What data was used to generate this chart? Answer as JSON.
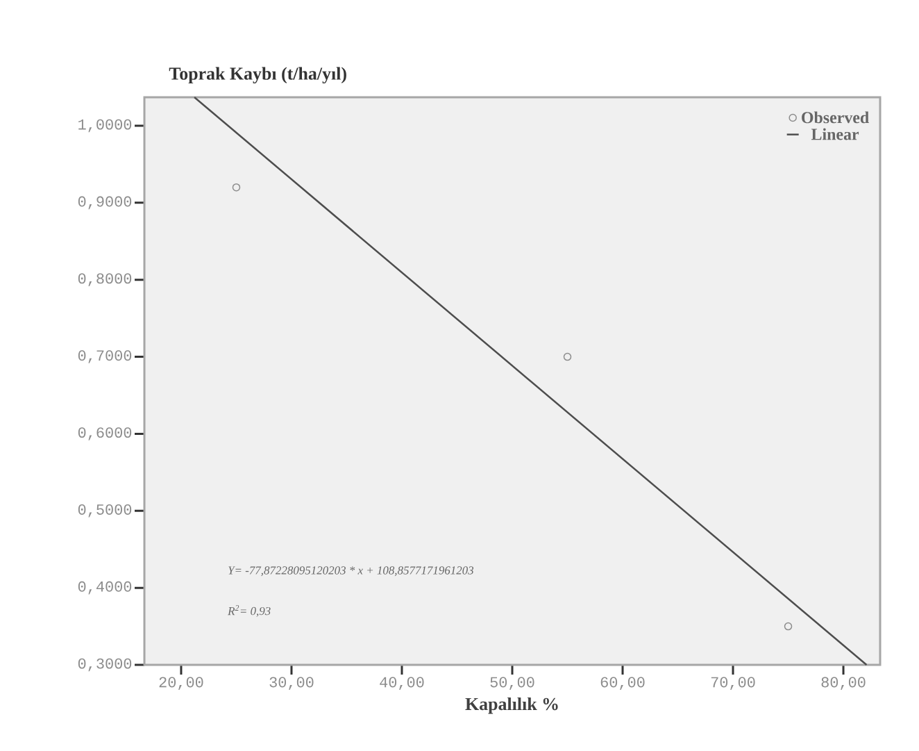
{
  "chart_data": {
    "type": "scatter",
    "ylabel": "Toprak Kaybı (t/ha/yıl)",
    "xlabel": "Kapalılık %",
    "series": [
      {
        "name": "Observed",
        "color": "#8c8c8c",
        "marker": "circle",
        "x": [
          25,
          55,
          75
        ],
        "values": [
          0.92,
          0.7,
          0.35
        ]
      },
      {
        "name": "Linear",
        "type": "line",
        "color": "#4d4d4d",
        "marker": "none",
        "line_style": "solid",
        "x": [
          21.2,
          82.1
        ],
        "values": [
          1.037,
          0.3
        ]
      }
    ],
    "xlim": [
      16.67,
      83.33
    ],
    "ylim": [
      0.3,
      1.037
    ],
    "xticks": [
      {
        "value": 20,
        "label": "20,00"
      },
      {
        "value": 30,
        "label": "30,00"
      },
      {
        "value": 40,
        "label": "40,00"
      },
      {
        "value": 50,
        "label": "50,00"
      },
      {
        "value": 60,
        "label": "60,00"
      },
      {
        "value": 70,
        "label": "70,00"
      },
      {
        "value": 80,
        "label": "80,00"
      }
    ],
    "yticks": [
      {
        "value": 0.3,
        "label": "0,3000"
      },
      {
        "value": 0.4,
        "label": "0,4000"
      },
      {
        "value": 0.5,
        "label": "0,5000"
      },
      {
        "value": 0.6,
        "label": "0,6000"
      },
      {
        "value": 0.7,
        "label": "0,7000"
      },
      {
        "value": 0.8,
        "label": "0,8000"
      },
      {
        "value": 0.9,
        "label": "0,9000"
      },
      {
        "value": 1.0,
        "label": "1,0000"
      }
    ],
    "annotations": [
      "Y= -77,87228095120203 * x + 108,8577171961203",
      "R$^{2}$= 0,93"
    ],
    "legend": "top right",
    "grid": false
  }
}
